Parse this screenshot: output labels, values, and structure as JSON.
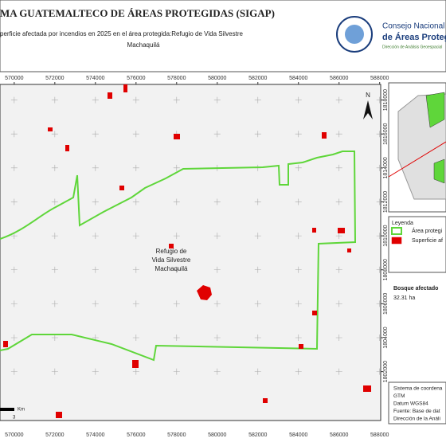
{
  "header": {
    "title": "MA GUATEMALTECO DE ÁREAS PROTEGIDAS  (SIGAP)",
    "subtitle": [
      "perficie afectada por incendios en 2025 en el área protegida:Refugio de Vida Silvestre",
      "Machaquilá"
    ],
    "logo": {
      "line1": "Consejo Nacional",
      "line2": "de Áreas Protegidas",
      "line3": "Dirección de Análisis Geoespacial"
    }
  },
  "map": {
    "area_label": [
      "Refugio de",
      "Vida Silvestre",
      "Machaquilá"
    ],
    "xlim": [
      569300,
      588050
    ],
    "ylim": [
      1799120,
      1818920
    ],
    "xticks": [
      570000,
      572000,
      574000,
      576000,
      578000,
      580000,
      582000,
      584000,
      586000,
      588000
    ],
    "yticks": [
      1802000,
      1804000,
      1806000,
      1808000,
      1810000,
      1812000,
      1814000,
      1816000,
      1818000
    ],
    "north": "N",
    "scale": {
      "unit": "Km",
      "value": 3
    },
    "boundary_color": "#5fd63a",
    "fire_color": "#e00000"
  },
  "legend": {
    "title": "Leyenda",
    "items": [
      {
        "label": "Área protegi",
        "color": "#5fd63a",
        "kind": "outline"
      },
      {
        "label": "Superficie af",
        "color": "#e00000",
        "kind": "fill"
      }
    ]
  },
  "stats": {
    "title": "Bosque afectado",
    "value": "32.31 ha"
  },
  "info": [
    "Sistema de coordena",
    "GTM",
    "Datum WGS84",
    "Fuente: Base de dat",
    "Dirección de la Análi"
  ]
}
